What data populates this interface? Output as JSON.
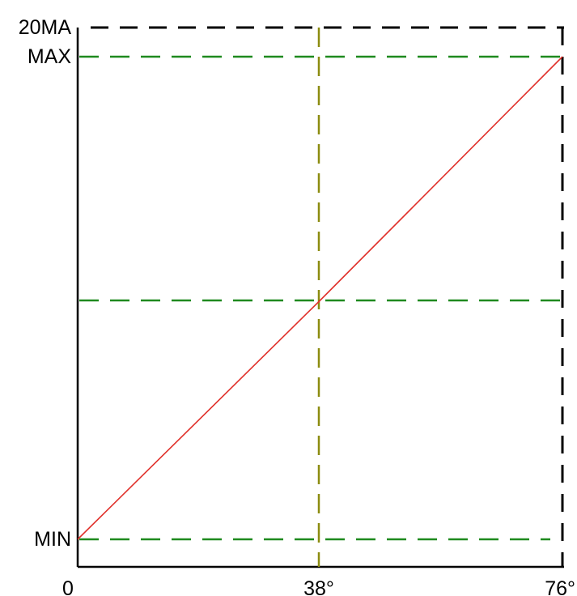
{
  "chart_data": {
    "type": "line",
    "title": "",
    "xlabel": "",
    "ylabel": "",
    "xlim": [
      0,
      76
    ],
    "x_ticks": [
      {
        "value": 0,
        "label": "0"
      },
      {
        "value": 38,
        "label": "38°"
      },
      {
        "value": 76,
        "label": "76°"
      }
    ],
    "y_ticks": [
      {
        "key": "min",
        "label": "MIN"
      },
      {
        "key": "max",
        "label": "MAX"
      },
      {
        "key": "top",
        "label": "20MA"
      }
    ],
    "series": [
      {
        "x": [
          0,
          38,
          76
        ],
        "y": [
          "MIN",
          "midpoint",
          "MAX"
        ],
        "color": "#e0302a"
      }
    ],
    "reference_lines": {
      "horizontal": [
        "MIN",
        "midpoint",
        "MAX",
        "20MA"
      ],
      "vertical": [
        38,
        76
      ]
    },
    "grid": false,
    "legend": "none",
    "colors": {
      "series": "#e0302a",
      "guide_green": "#1f8a1f",
      "guide_olive": "#8c8c10",
      "frame_black": "#000000"
    }
  }
}
